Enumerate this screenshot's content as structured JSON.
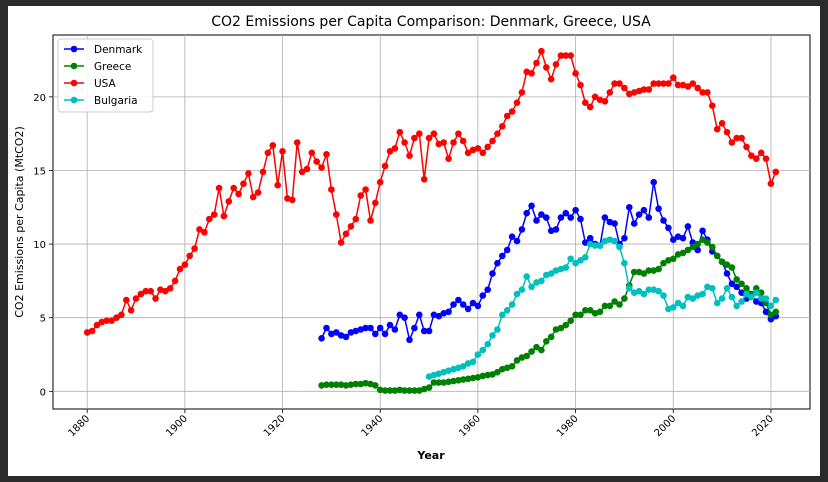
{
  "chart_data": {
    "type": "line",
    "title": "CO2 Emissions per Capita Comparison: Denmark, Greece, USA",
    "xlabel": "Year",
    "ylabel": "CO2 Emissions per Capita (MtCO2)",
    "xlim": [
      1873,
      2028
    ],
    "ylim": [
      -1.2,
      24.2
    ],
    "xticks": [
      1880,
      1900,
      1920,
      1940,
      1960,
      1980,
      2000,
      2020
    ],
    "yticks": [
      0,
      5,
      10,
      15,
      20
    ],
    "grid": true,
    "legend": "top-left",
    "series": [
      {
        "name": "Denmark",
        "color": "#0000ff",
        "x": [
          1928,
          1929,
          1930,
          1931,
          1932,
          1933,
          1934,
          1935,
          1936,
          1937,
          1938,
          1939,
          1940,
          1941,
          1942,
          1943,
          1944,
          1945,
          1946,
          1947,
          1948,
          1949,
          1950,
          1951,
          1952,
          1953,
          1954,
          1955,
          1956,
          1957,
          1958,
          1959,
          1960,
          1961,
          1962,
          1963,
          1964,
          1965,
          1966,
          1967,
          1968,
          1969,
          1970,
          1971,
          1972,
          1973,
          1974,
          1975,
          1976,
          1977,
          1978,
          1979,
          1980,
          1981,
          1982,
          1983,
          1984,
          1985,
          1986,
          1987,
          1988,
          1989,
          1990,
          1991,
          1992,
          1993,
          1994,
          1995,
          1996,
          1997,
          1998,
          1999,
          2000,
          2001,
          2002,
          2003,
          2004,
          2005,
          2006,
          2007,
          2008,
          2009,
          2010,
          2011,
          2012,
          2013,
          2014,
          2015,
          2016,
          2017,
          2018,
          2019,
          2020,
          2021
        ],
        "values": [
          3.6,
          4.3,
          3.9,
          4.0,
          3.8,
          3.7,
          4.0,
          4.1,
          4.2,
          4.3,
          4.3,
          3.9,
          4.3,
          3.9,
          4.5,
          4.2,
          5.2,
          5.0,
          3.5,
          4.3,
          5.2,
          4.1,
          4.1,
          5.2,
          5.1,
          5.3,
          5.4,
          5.9,
          6.2,
          5.9,
          5.6,
          6.0,
          5.8,
          6.5,
          6.9,
          8.0,
          8.7,
          9.2,
          9.6,
          10.5,
          10.2,
          11.0,
          12.1,
          12.6,
          11.6,
          12.0,
          11.8,
          10.9,
          11.0,
          11.8,
          12.1,
          11.8,
          12.3,
          11.7,
          10.1,
          10.4,
          10.0,
          9.9,
          11.8,
          11.5,
          11.4,
          10.0,
          10.4,
          12.5,
          11.4,
          12.0,
          12.3,
          11.8,
          14.2,
          12.4,
          11.6,
          11.1,
          10.3,
          10.5,
          10.4,
          11.2,
          10.1,
          9.6,
          10.9,
          10.3,
          9.5,
          9.2,
          8.8,
          8.0,
          7.3,
          7.1,
          6.7,
          6.3,
          6.5,
          6.1,
          6.0,
          5.4,
          4.9,
          5.1
        ]
      },
      {
        "name": "Greece",
        "color": "#008000",
        "x": [
          1928,
          1929,
          1930,
          1931,
          1932,
          1933,
          1934,
          1935,
          1936,
          1937,
          1938,
          1939,
          1940,
          1941,
          1942,
          1943,
          1944,
          1945,
          1946,
          1947,
          1948,
          1949,
          1950,
          1951,
          1952,
          1953,
          1954,
          1955,
          1956,
          1957,
          1958,
          1959,
          1960,
          1961,
          1962,
          1963,
          1964,
          1965,
          1966,
          1967,
          1968,
          1969,
          1970,
          1971,
          1972,
          1973,
          1974,
          1975,
          1976,
          1977,
          1978,
          1979,
          1980,
          1981,
          1982,
          1983,
          1984,
          1985,
          1986,
          1987,
          1988,
          1989,
          1990,
          1991,
          1992,
          1993,
          1994,
          1995,
          1996,
          1997,
          1998,
          1999,
          2000,
          2001,
          2002,
          2003,
          2004,
          2005,
          2006,
          2007,
          2008,
          2009,
          2010,
          2011,
          2012,
          2013,
          2014,
          2015,
          2016,
          2017,
          2018,
          2019,
          2020,
          2021
        ],
        "values": [
          0.4,
          0.45,
          0.45,
          0.45,
          0.45,
          0.4,
          0.45,
          0.5,
          0.5,
          0.55,
          0.5,
          0.4,
          0.1,
          0.05,
          0.05,
          0.05,
          0.1,
          0.05,
          0.05,
          0.05,
          0.05,
          0.15,
          0.25,
          0.6,
          0.6,
          0.6,
          0.65,
          0.7,
          0.75,
          0.8,
          0.85,
          0.9,
          0.95,
          1.05,
          1.1,
          1.15,
          1.3,
          1.5,
          1.6,
          1.7,
          2.1,
          2.3,
          2.4,
          2.7,
          3.0,
          2.8,
          3.4,
          3.7,
          4.2,
          4.3,
          4.5,
          4.8,
          5.2,
          5.2,
          5.5,
          5.5,
          5.3,
          5.4,
          5.8,
          5.8,
          6.1,
          5.9,
          6.3,
          7.2,
          8.1,
          8.1,
          8.0,
          8.2,
          8.2,
          8.3,
          8.7,
          8.9,
          9.0,
          9.3,
          9.4,
          9.6,
          9.8,
          10.0,
          10.3,
          10.1,
          9.8,
          9.2,
          8.8,
          8.6,
          8.4,
          7.6,
          7.3,
          7.0,
          6.6,
          7.0,
          6.7,
          6.0,
          5.2,
          5.4
        ]
      },
      {
        "name": "USA",
        "color": "#ff0000",
        "x": [
          1880,
          1881,
          1882,
          1883,
          1884,
          1885,
          1886,
          1887,
          1888,
          1889,
          1890,
          1891,
          1892,
          1893,
          1894,
          1895,
          1896,
          1897,
          1898,
          1899,
          1900,
          1901,
          1902,
          1903,
          1904,
          1905,
          1906,
          1907,
          1908,
          1909,
          1910,
          1911,
          1912,
          1913,
          1914,
          1915,
          1916,
          1917,
          1918,
          1919,
          1920,
          1921,
          1922,
          1923,
          1924,
          1925,
          1926,
          1927,
          1928,
          1929,
          1930,
          1931,
          1932,
          1933,
          1934,
          1935,
          1936,
          1937,
          1938,
          1939,
          1940,
          1941,
          1942,
          1943,
          1944,
          1945,
          1946,
          1947,
          1948,
          1949,
          1950,
          1951,
          1952,
          1953,
          1954,
          1955,
          1956,
          1957,
          1958,
          1959,
          1960,
          1961,
          1962,
          1963,
          1964,
          1965,
          1966,
          1967,
          1968,
          1969,
          1970,
          1971,
          1972,
          1973,
          1974,
          1975,
          1976,
          1977,
          1978,
          1979,
          1980,
          1981,
          1982,
          1983,
          1984,
          1985,
          1986,
          1987,
          1988,
          1989,
          1990,
          1991,
          1992,
          1993,
          1994,
          1995,
          1996,
          1997,
          1998,
          1999,
          2000,
          2001,
          2002,
          2003,
          2004,
          2005,
          2006,
          2007,
          2008,
          2009,
          2010,
          2011,
          2012,
          2013,
          2014,
          2015,
          2016,
          2017,
          2018,
          2019,
          2020,
          2021
        ],
        "values": [
          4.0,
          4.1,
          4.5,
          4.7,
          4.8,
          4.8,
          5.0,
          5.2,
          6.2,
          5.5,
          6.3,
          6.6,
          6.8,
          6.8,
          6.3,
          6.9,
          6.8,
          7.0,
          7.5,
          8.3,
          8.6,
          9.2,
          9.7,
          11.0,
          10.8,
          11.7,
          12.0,
          13.8,
          11.9,
          12.9,
          13.8,
          13.4,
          14.1,
          14.8,
          13.2,
          13.5,
          14.9,
          16.2,
          16.7,
          14.0,
          16.3,
          13.1,
          13.0,
          16.9,
          14.9,
          15.1,
          16.2,
          15.6,
          15.2,
          16.1,
          13.7,
          12.0,
          10.1,
          10.7,
          11.2,
          11.7,
          13.3,
          13.7,
          11.6,
          12.8,
          14.2,
          15.3,
          16.3,
          16.5,
          17.6,
          16.9,
          16.0,
          17.2,
          17.5,
          14.4,
          17.2,
          17.5,
          16.8,
          16.9,
          15.8,
          16.9,
          17.5,
          17.0,
          16.2,
          16.4,
          16.5,
          16.2,
          16.6,
          17.0,
          17.5,
          18.0,
          18.7,
          19.0,
          19.6,
          20.3,
          21.7,
          21.6,
          22.3,
          23.1,
          22.0,
          21.2,
          22.2,
          22.8,
          22.8,
          22.8,
          21.6,
          20.8,
          19.6,
          19.3,
          20.0,
          19.8,
          19.7,
          20.3,
          20.9,
          20.9,
          20.6,
          20.2,
          20.3,
          20.4,
          20.5,
          20.5,
          20.9,
          20.9,
          20.9,
          20.9,
          21.3,
          20.8,
          20.8,
          20.7,
          20.9,
          20.6,
          20.3,
          20.3,
          19.4,
          17.8,
          18.2,
          17.6,
          16.9,
          17.2,
          17.2,
          16.6,
          16.0,
          15.8,
          16.2,
          15.8,
          14.1,
          14.9
        ]
      },
      {
        "name": "Bulgaria",
        "color": "#00bfbf",
        "x": [
          1950,
          1951,
          1952,
          1953,
          1954,
          1955,
          1956,
          1957,
          1958,
          1959,
          1960,
          1961,
          1962,
          1963,
          1964,
          1965,
          1966,
          1967,
          1968,
          1969,
          1970,
          1971,
          1972,
          1973,
          1974,
          1975,
          1976,
          1977,
          1978,
          1979,
          1980,
          1981,
          1982,
          1983,
          1984,
          1985,
          1986,
          1987,
          1988,
          1989,
          1990,
          1991,
          1992,
          1993,
          1994,
          1995,
          1996,
          1997,
          1998,
          1999,
          2000,
          2001,
          2002,
          2003,
          2004,
          2005,
          2006,
          2007,
          2008,
          2009,
          2010,
          2011,
          2012,
          2013,
          2014,
          2015,
          2016,
          2017,
          2018,
          2019,
          2020,
          2021
        ],
        "values": [
          1.0,
          1.1,
          1.2,
          1.3,
          1.4,
          1.5,
          1.6,
          1.7,
          1.9,
          2.0,
          2.5,
          2.8,
          3.2,
          3.8,
          4.2,
          5.2,
          5.5,
          5.9,
          6.6,
          6.9,
          7.8,
          7.1,
          7.4,
          7.5,
          7.9,
          8.0,
          8.2,
          8.3,
          8.4,
          9.0,
          8.7,
          8.9,
          9.1,
          10.0,
          9.9,
          9.9,
          10.2,
          10.3,
          10.2,
          9.8,
          8.7,
          7.0,
          6.7,
          6.8,
          6.6,
          6.9,
          6.9,
          6.8,
          6.5,
          5.6,
          5.7,
          6.0,
          5.8,
          6.4,
          6.3,
          6.5,
          6.6,
          7.1,
          7.0,
          6.0,
          6.3,
          7.0,
          6.4,
          5.8,
          6.1,
          6.6,
          6.4,
          6.7,
          6.3,
          6.3,
          5.8,
          6.2
        ]
      }
    ]
  }
}
